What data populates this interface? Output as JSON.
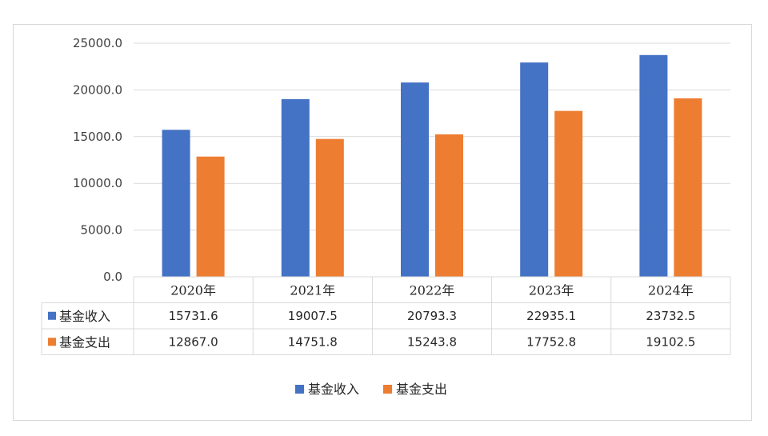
{
  "chart_data": {
    "type": "bar",
    "categories": [
      "2020年",
      "2021年",
      "2022年",
      "2023年",
      "2024年"
    ],
    "series": [
      {
        "name": "基金收入",
        "color": "#4472c4",
        "values": [
          15731.6,
          19007.5,
          20793.3,
          22935.1,
          23732.5
        ]
      },
      {
        "name": "基金支出",
        "color": "#ed7d31",
        "values": [
          12867.0,
          14751.8,
          15243.8,
          17752.8,
          19102.5
        ]
      }
    ],
    "value_labels": [
      [
        "15731.6",
        "19007.5",
        "20793.3",
        "22935.1",
        "23732.5"
      ],
      [
        "12867.0",
        "14751.8",
        "15243.8",
        "17752.8",
        "19102.5"
      ]
    ],
    "yticks": [
      "0.0",
      "5000.0",
      "10000.0",
      "15000.0",
      "20000.0",
      "25000.0"
    ],
    "ylim": [
      0,
      25000
    ],
    "grid": true,
    "data_table": true,
    "legend_position": "bottom"
  }
}
